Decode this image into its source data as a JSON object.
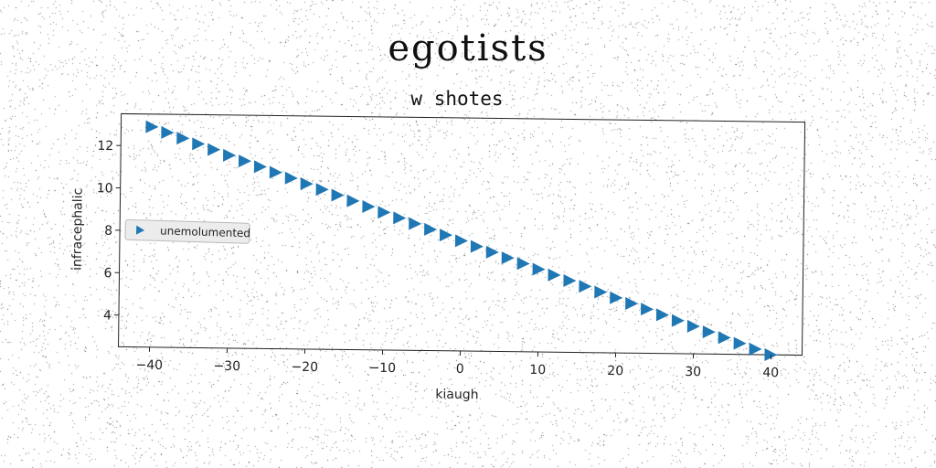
{
  "suptitle": "egotists",
  "chart_data": {
    "type": "scatter",
    "title": "w shotes",
    "xlabel": "kiaugh",
    "ylabel": "infracephalic",
    "xlim": [
      -44,
      44
    ],
    "ylim": [
      2.5,
      13.5
    ],
    "xticks": [
      -40,
      -30,
      -20,
      -10,
      0,
      10,
      20,
      30,
      40
    ],
    "yticks": [
      4,
      6,
      8,
      10,
      12
    ],
    "grid": false,
    "legend_position": "center-left",
    "series": [
      {
        "name": "unemolumented",
        "marker": "triangle-right",
        "color": "#1f77b4",
        "x": [
          -40,
          -38,
          -36,
          -34,
          -32,
          -30,
          -28,
          -26,
          -24,
          -22,
          -20,
          -18,
          -16,
          -14,
          -12,
          -10,
          -8,
          -6,
          -4,
          -2,
          0,
          2,
          4,
          6,
          8,
          10,
          12,
          14,
          16,
          18,
          20,
          22,
          24,
          26,
          28,
          30,
          32,
          34,
          36,
          38,
          40
        ],
        "y": [
          12.9,
          12.64,
          12.38,
          12.12,
          11.86,
          11.6,
          11.34,
          11.08,
          10.82,
          10.56,
          10.3,
          10.04,
          9.78,
          9.52,
          9.26,
          9.0,
          8.74,
          8.48,
          8.22,
          7.96,
          7.7,
          7.44,
          7.18,
          6.92,
          6.66,
          6.4,
          6.14,
          5.88,
          5.62,
          5.36,
          5.1,
          4.84,
          4.58,
          4.32,
          4.06,
          3.8,
          3.54,
          3.28,
          3.02,
          2.76,
          2.5
        ]
      }
    ]
  }
}
